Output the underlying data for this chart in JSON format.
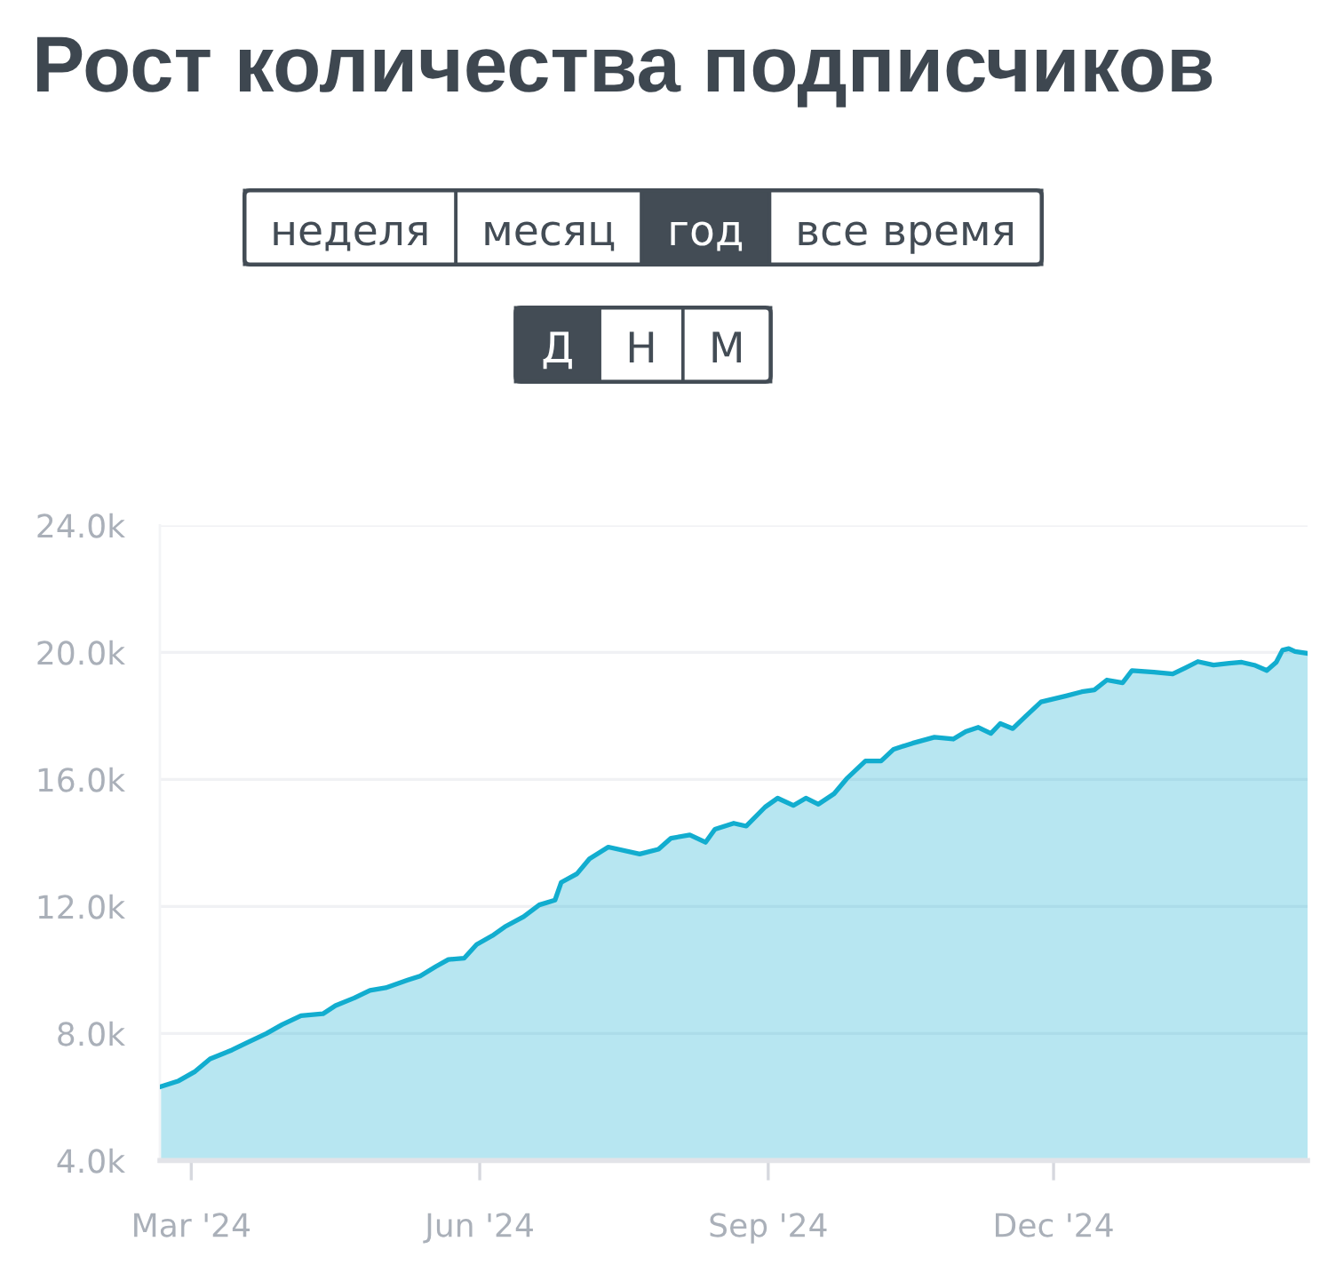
{
  "chart_data": {
    "type": "area",
    "title": "Рост количества подписчиков",
    "annotations": [
      "неделя",
      "месяц",
      "год",
      "все время",
      "Д",
      "Н",
      "М"
    ],
    "x": [
      "2024-02-20",
      "2024-02-26",
      "2024-03-02",
      "2024-03-07",
      "2024-03-14",
      "2024-03-19",
      "2024-03-25",
      "2024-03-30",
      "2024-04-05",
      "2024-04-12",
      "2024-04-16",
      "2024-04-22",
      "2024-04-27",
      "2024-05-02",
      "2024-05-09",
      "2024-05-13",
      "2024-05-18",
      "2024-05-22",
      "2024-05-27",
      "2024-05-31",
      "2024-06-05",
      "2024-06-09",
      "2024-06-15",
      "2024-06-20",
      "2024-06-25",
      "2024-06-27",
      "2024-07-02",
      "2024-07-06",
      "2024-07-12",
      "2024-07-22",
      "2024-07-28",
      "2024-08-01",
      "2024-08-07",
      "2024-08-12",
      "2024-08-15",
      "2024-08-21",
      "2024-08-25",
      "2024-08-31",
      "2024-09-04",
      "2024-09-09",
      "2024-09-13",
      "2024-09-17",
      "2024-09-22",
      "2024-09-26",
      "2024-10-02",
      "2024-10-07",
      "2024-10-11",
      "2024-10-17",
      "2024-10-24",
      "2024-10-30",
      "2024-11-03",
      "2024-11-07",
      "2024-11-11",
      "2024-11-14",
      "2024-11-18",
      "2024-11-22",
      "2024-11-27",
      "2024-12-05",
      "2024-12-10",
      "2024-12-14",
      "2024-12-18",
      "2024-12-23",
      "2024-12-26",
      "2025-01-02",
      "2025-01-08",
      "2025-01-12",
      "2025-01-16",
      "2025-01-21",
      "2025-01-26",
      "2025-01-30",
      "2025-02-03",
      "2025-02-07",
      "2025-02-10",
      "2025-02-12",
      "2025-02-14",
      "2025-02-16",
      "2025-02-20"
    ],
    "series": [
      {
        "color": "#12adcf",
        "values": [
          6320,
          6510,
          6790,
          7200,
          7480,
          7720,
          8000,
          8280,
          8560,
          8620,
          8880,
          9120,
          9360,
          9440,
          9680,
          9810,
          10110,
          10330,
          10370,
          10800,
          11080,
          11360,
          11680,
          12050,
          12200,
          12760,
          13030,
          13500,
          13870,
          13650,
          13800,
          14150,
          14250,
          14020,
          14430,
          14620,
          14530,
          15130,
          15410,
          15180,
          15410,
          15220,
          15550,
          16020,
          16580,
          16580,
          16950,
          17140,
          17330,
          17270,
          17510,
          17640,
          17450,
          17760,
          17600,
          17980,
          18440,
          18630,
          18760,
          18820,
          19130,
          19040,
          19430,
          19380,
          19320,
          19510,
          19710,
          19600,
          19660,
          19690,
          19600,
          19430,
          19690,
          20070,
          20120,
          20030,
          19970
        ]
      }
    ],
    "xlim": [
      "2024-02-20",
      "2025-02-20"
    ],
    "xticks": [
      {
        "value": "2024-03-01",
        "label": "Mar '24"
      },
      {
        "value": "2024-06-01",
        "label": "Jun '24"
      },
      {
        "value": "2024-09-01",
        "label": "Sep '24"
      },
      {
        "value": "2024-12-01",
        "label": "Dec '24"
      }
    ],
    "ylim": [
      4000,
      24000
    ],
    "yticks": [
      {
        "value": 4000,
        "label": "4.0k"
      },
      {
        "value": 8000,
        "label": "8.0k"
      },
      {
        "value": 12000,
        "label": "12.0k"
      },
      {
        "value": 16000,
        "label": "16.0k"
      },
      {
        "value": 20000,
        "label": "20.0k"
      },
      {
        "value": 24000,
        "label": "24.0k"
      }
    ],
    "grid": "y",
    "line_style": "solid"
  }
}
